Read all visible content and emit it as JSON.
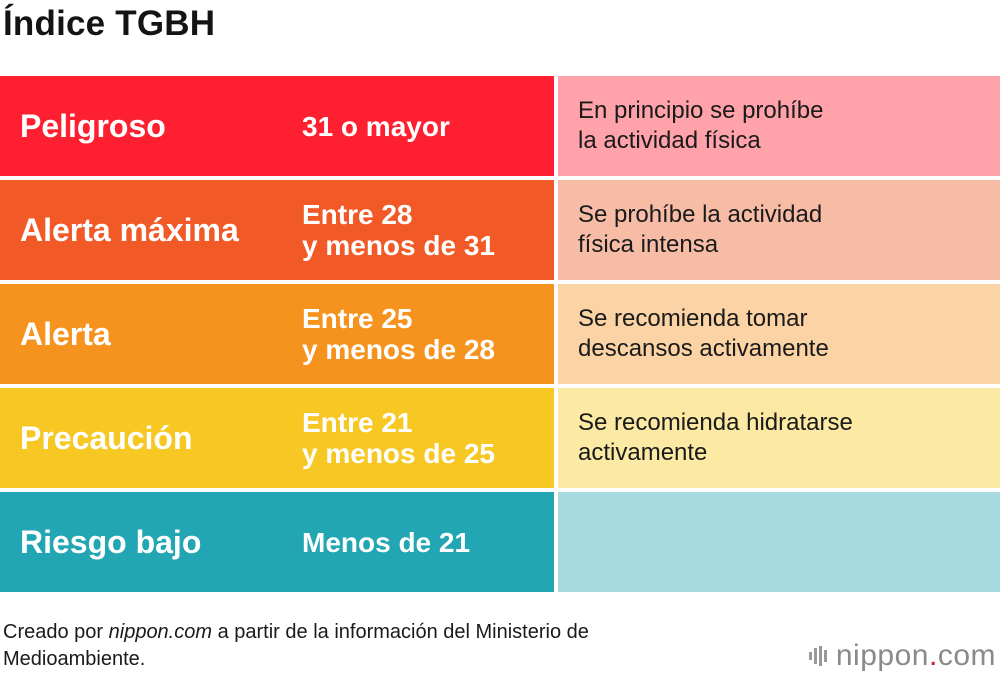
{
  "title": "Índice TGBH",
  "rows": [
    {
      "level": "Peligroso",
      "range": "31 o mayor",
      "description": "En principio se prohíbe\nla actividad física",
      "color": "#fe2030",
      "light_color": "#ffa2a9"
    },
    {
      "level": "Alerta máxima",
      "range": "Entre 28\ny menos de 31",
      "description": "Se prohíbe la actividad\nfísica intensa",
      "color": "#f15a27",
      "light_color": "#f7bca6"
    },
    {
      "level": "Alerta",
      "range": "Entre 25\ny menos de 28",
      "description": "Se recomienda tomar\ndescansos activamente",
      "color": "#f6931e",
      "light_color": "#fbd3a4"
    },
    {
      "level": "Precaución",
      "range": "Entre 21\ny menos de 25",
      "description": "Se recomienda hidratarse\nactivamente",
      "color": "#f7c823",
      "light_color": "#fbe9a4"
    },
    {
      "level": "Riesgo bajo",
      "range": "Menos de 21",
      "description": "",
      "color": "#22a6b3",
      "light_color": "#a8dbe1"
    }
  ],
  "chart_data": {
    "type": "table",
    "title": "Índice TGBH",
    "columns": [],
    "rows": [
      [
        "Peligroso",
        "31 o mayor",
        "En principio se prohíbe la actividad física"
      ],
      [
        "Alerta máxima",
        "Entre 28 y menos de 31",
        "Se prohíbe la actividad física intensa"
      ],
      [
        "Alerta",
        "Entre 25 y menos de 28",
        "Se recomienda tomar descansos activamente"
      ],
      [
        "Precaución",
        "Entre 21 y menos de 25",
        "Se recomienda hidratarse activamente"
      ],
      [
        "Riesgo bajo",
        "Menos de 21",
        ""
      ]
    ]
  },
  "footer": {
    "prefix": "Creado por ",
    "source_site": "nippon.com",
    "suffix": " a partir de la información del Ministerio de\nMedioambiente."
  },
  "logo": {
    "text_main": "nippon",
    "text_dot": ".",
    "text_tld": "com",
    "icon": "nippon-logo-icon",
    "color": "#8a8a8a",
    "dot_color": "#c8202e"
  }
}
